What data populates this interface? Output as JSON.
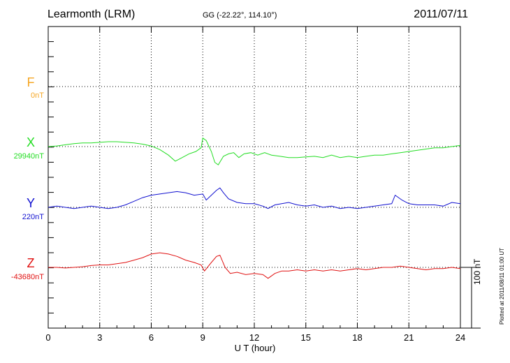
{
  "header": {
    "station": "Learmonth (LRM)",
    "coords": "GG (-22.22°, 114.10°)",
    "date": "2011/07/11"
  },
  "components": [
    {
      "letter": "F",
      "baseline": "0nT",
      "color": "#f5a623"
    },
    {
      "letter": "X",
      "baseline": "29940nT",
      "color": "#22dd22"
    },
    {
      "letter": "Y",
      "baseline": "220nT",
      "color": "#1010d0"
    },
    {
      "letter": "Z",
      "baseline": "-43680nT",
      "color": "#e01010"
    }
  ],
  "footer": {
    "xlabel": "U T (hour)",
    "scale_bar": "100 nT",
    "plotted_note": "Plotted at 2011/08/11 01:00 UT"
  },
  "chart_data": {
    "type": "line",
    "xlabel": "U T (hour)",
    "ylabel": "",
    "xlim": [
      0,
      24
    ],
    "xticks": [
      0,
      3,
      6,
      9,
      12,
      15,
      18,
      21,
      24
    ],
    "grid": true,
    "units": "nT offset from baseline",
    "series": [
      {
        "name": "X",
        "baseline": "29940nT",
        "x": [
          0,
          0.5,
          1,
          1.5,
          2,
          2.5,
          3,
          3.5,
          4,
          4.5,
          5,
          5.5,
          6,
          6.5,
          7,
          7.4,
          7.8,
          8.2,
          8.6,
          8.9,
          9.0,
          9.2,
          9.5,
          9.7,
          9.9,
          10.2,
          10.5,
          10.8,
          11.1,
          11.4,
          11.8,
          12.2,
          12.6,
          13,
          13.5,
          14,
          14.5,
          15,
          15.5,
          16,
          16.5,
          17,
          17.5,
          18,
          18.5,
          19,
          19.5,
          20,
          20.5,
          21,
          21.5,
          22,
          22.5,
          23,
          23.5,
          24
        ],
        "values": [
          0,
          1,
          3,
          5,
          6,
          6,
          7,
          8,
          8,
          7,
          6,
          4,
          1,
          -5,
          -14,
          -24,
          -18,
          -12,
          -8,
          -2,
          14,
          10,
          -8,
          -26,
          -30,
          -16,
          -12,
          -10,
          -18,
          -12,
          -10,
          -14,
          -10,
          -14,
          -16,
          -18,
          -18,
          -17,
          -16,
          -18,
          -14,
          -18,
          -16,
          -18,
          -16,
          -14,
          -14,
          -12,
          -10,
          -8,
          -6,
          -4,
          -2,
          -2,
          0,
          2
        ]
      },
      {
        "name": "Y",
        "baseline": "220nT",
        "x": [
          0,
          0.5,
          1,
          1.5,
          2,
          2.5,
          3,
          3.5,
          4,
          4.5,
          5,
          5.5,
          6,
          6.5,
          7,
          7.5,
          8,
          8.5,
          9.0,
          9.2,
          9.5,
          9.8,
          10.0,
          10.2,
          10.5,
          11,
          11.5,
          12,
          12.5,
          12.8,
          13.2,
          13.6,
          14,
          14.5,
          15,
          15.5,
          16,
          16.5,
          17,
          17.5,
          18,
          18.5,
          19,
          19.5,
          20,
          20.2,
          20.6,
          21,
          21.5,
          22,
          22.5,
          23,
          23.5,
          24
        ],
        "values": [
          0,
          2,
          0,
          -2,
          0,
          2,
          0,
          -2,
          0,
          4,
          10,
          16,
          20,
          22,
          24,
          26,
          24,
          20,
          22,
          12,
          20,
          28,
          32,
          24,
          14,
          8,
          6,
          6,
          2,
          -2,
          4,
          6,
          8,
          4,
          2,
          4,
          0,
          2,
          -2,
          0,
          -2,
          0,
          2,
          4,
          6,
          20,
          12,
          6,
          4,
          4,
          4,
          2,
          8,
          6
        ]
      },
      {
        "name": "Z",
        "baseline": "-43680nT",
        "x": [
          0,
          0.5,
          1,
          1.5,
          2,
          2.5,
          3,
          3.5,
          4,
          4.5,
          5,
          5.5,
          6,
          6.5,
          7,
          7.5,
          8,
          8.5,
          8.9,
          9.1,
          9.5,
          9.8,
          10.0,
          10.3,
          10.6,
          11,
          11.5,
          12,
          12.5,
          12.8,
          13.2,
          13.6,
          14,
          14.5,
          15,
          15.5,
          16,
          16.5,
          17,
          17.5,
          18,
          18.5,
          19,
          19.5,
          20,
          20.5,
          21,
          21.5,
          22,
          22.5,
          23,
          23.5,
          24
        ],
        "values": [
          0,
          0,
          -1,
          0,
          1,
          3,
          4,
          4,
          6,
          8,
          12,
          16,
          22,
          24,
          22,
          18,
          12,
          8,
          4,
          -6,
          8,
          18,
          20,
          0,
          -10,
          -8,
          -12,
          -10,
          -12,
          -18,
          -10,
          -6,
          -6,
          -4,
          -6,
          -4,
          -6,
          -4,
          -6,
          -4,
          -2,
          -4,
          -2,
          0,
          0,
          2,
          0,
          -2,
          -4,
          -2,
          -2,
          0,
          -2
        ]
      }
    ]
  }
}
